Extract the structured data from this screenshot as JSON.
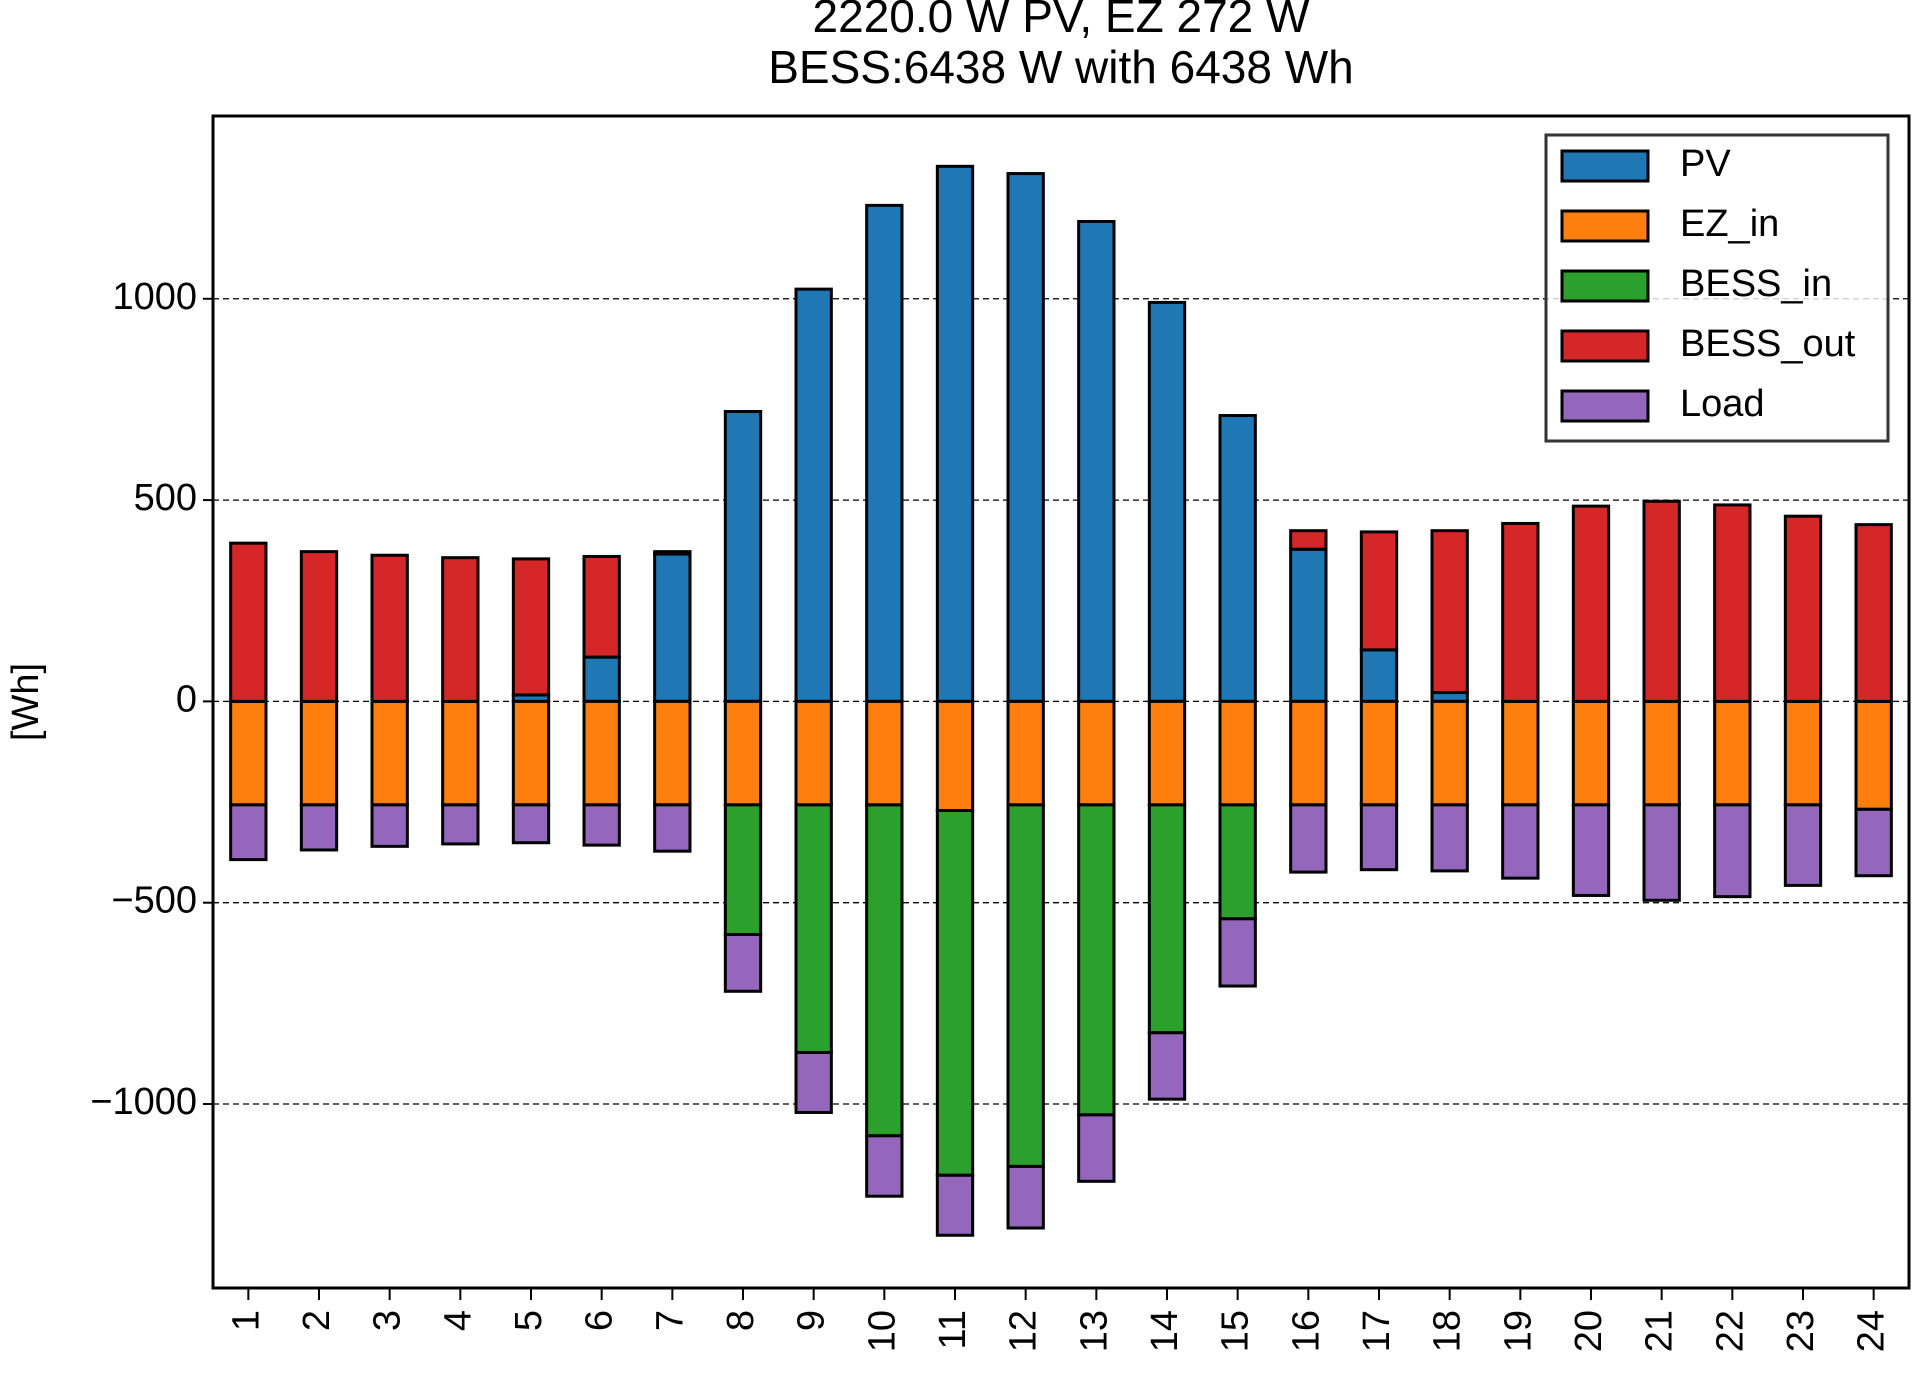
{
  "chart_data": {
    "type": "bar",
    "stacked": true,
    "title": "2220.0 W PV, EZ 272 W",
    "subtitle": "BESS:6438 W with 6438 Wh",
    "ylabel": "[Wh]",
    "categories": [
      "1",
      "2",
      "3",
      "4",
      "5",
      "6",
      "7",
      "8",
      "9",
      "10",
      "11",
      "12",
      "13",
      "14",
      "15",
      "16",
      "17",
      "18",
      "19",
      "20",
      "21",
      "22",
      "23",
      "24"
    ],
    "series": [
      {
        "name": "PV",
        "color": "#1f77b4",
        "values": [
          0,
          0,
          0,
          0,
          16,
          110,
          366,
          720,
          1024,
          1232,
          1329,
          1311,
          1192,
          991,
          710,
          378,
          128,
          22,
          0,
          0,
          0,
          0,
          0,
          0
        ]
      },
      {
        "name": "EZ_in",
        "color": "#ff7f0e",
        "values": [
          -257,
          -257,
          -257,
          -257,
          -257,
          -257,
          -257,
          -257,
          -257,
          -257,
          -271,
          -257,
          -257,
          -257,
          -257,
          -257,
          -257,
          -257,
          -257,
          -257,
          -257,
          -257,
          -257,
          -268
        ]
      },
      {
        "name": "BESS_in",
        "color": "#2ca02c",
        "values": [
          0,
          0,
          0,
          0,
          0,
          0,
          0,
          -322,
          -615,
          -822,
          -906,
          -898,
          -770,
          -566,
          -283,
          0,
          0,
          0,
          0,
          0,
          0,
          0,
          0,
          0
        ]
      },
      {
        "name": "BESS_out",
        "color": "#d62728",
        "values": [
          393,
          372,
          363,
          357,
          338,
          250,
          6,
          0,
          0,
          0,
          0,
          0,
          0,
          0,
          0,
          46,
          293,
          402,
          442,
          485,
          497,
          488,
          460,
          439
        ]
      },
      {
        "name": "Load",
        "color": "#9467bd",
        "values": [
          -136,
          -112,
          -103,
          -97,
          -94,
          -100,
          -115,
          -141,
          -149,
          -150,
          -149,
          -153,
          -165,
          -165,
          -167,
          -167,
          -161,
          -164,
          -182,
          -225,
          -237,
          -228,
          -200,
          -165
        ]
      }
    ],
    "ylim": [
      -1457,
      1454
    ],
    "yticks": [
      {
        "value": -1000,
        "label": "−1000"
      },
      {
        "value": -500,
        "label": "−500"
      },
      0,
      500,
      1000
    ],
    "grid": true,
    "legend": "upper right"
  }
}
